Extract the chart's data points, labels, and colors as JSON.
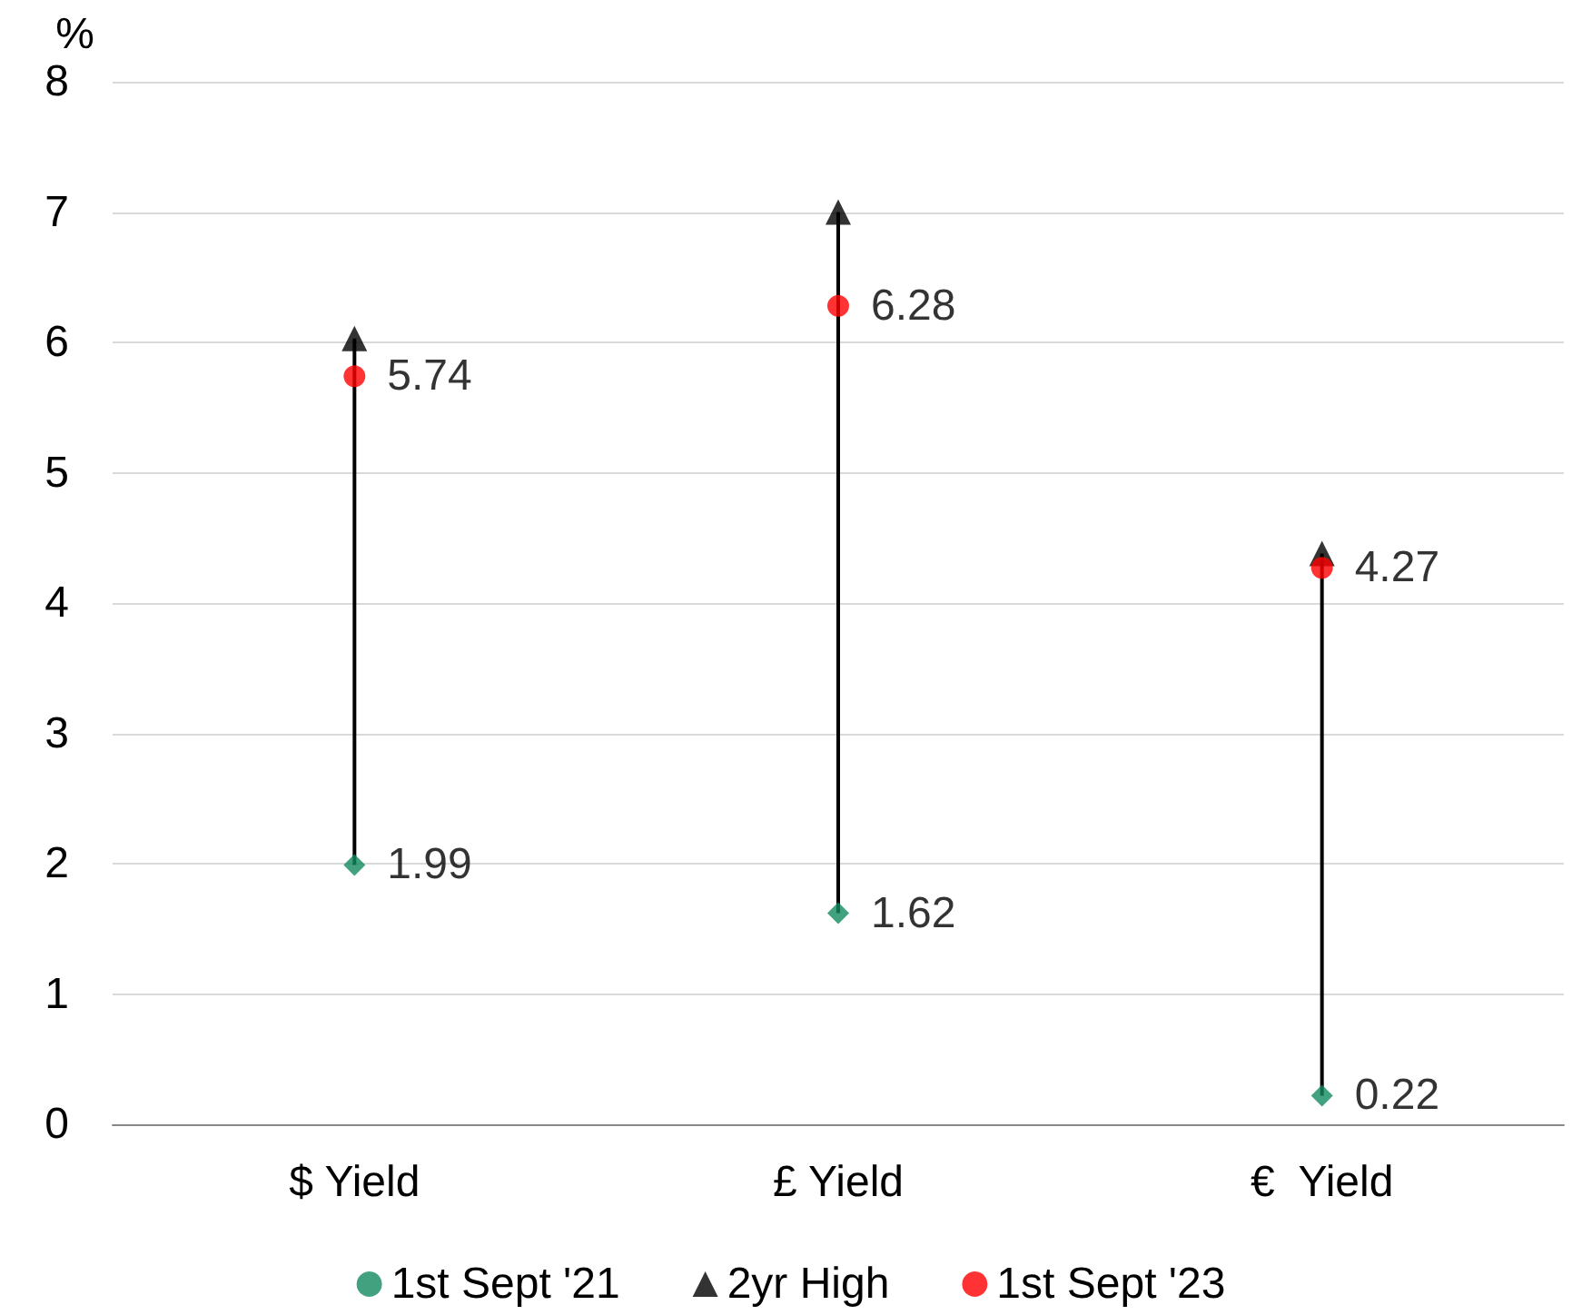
{
  "chart_data": {
    "type": "scatter",
    "ylabel": "%",
    "categories": [
      "$ Yield",
      "£ Yield",
      "€  Yield"
    ],
    "series": [
      {
        "name": "1st Sept '21",
        "color": "#138a5e",
        "marker": "diamond",
        "values": [
          1.99,
          1.62,
          0.22
        ],
        "value_labels": [
          "1.99",
          "1.62",
          "0.22"
        ]
      },
      {
        "name": "2yr High",
        "color": "#000000",
        "marker": "triangle",
        "values": [
          6.03,
          7.0,
          4.38
        ]
      },
      {
        "name": "1st Sept '23",
        "color": "#ff0000",
        "marker": "circle",
        "values": [
          5.74,
          6.28,
          4.27
        ],
        "value_labels": [
          "5.74",
          "6.28",
          "4.27"
        ]
      }
    ],
    "ylim": [
      0,
      8
    ],
    "yticks": [
      0,
      1,
      2,
      3,
      4,
      5,
      6,
      7,
      8
    ],
    "grid": "y",
    "legend": "bottom"
  }
}
